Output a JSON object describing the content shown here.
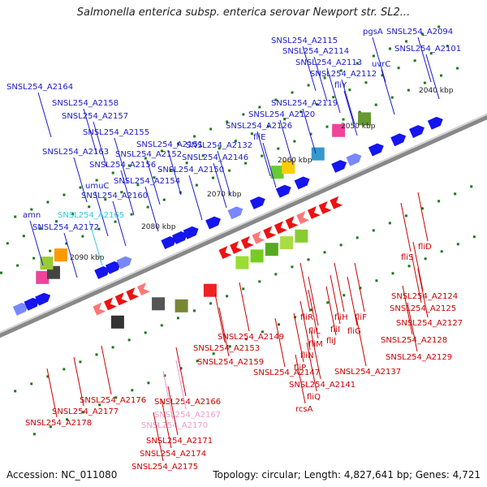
{
  "title": "Salmonella enterica subsp. enterica serovar Newport str. SL2...",
  "footer": {
    "accession": "Accession: NC_011080",
    "summary": "Topology: circular; Length: 4,827,641 bp; Genes: 4,721"
  },
  "colors": {
    "forward_label": "#1a1acc",
    "reverse_label": "#cc0000",
    "pseudo_forward": "#33c8e6",
    "pseudo_reverse": "#ee99cc",
    "backbone": "#888888",
    "tick": "#1a7a1a"
  },
  "ticks": [
    "2040 kbp",
    "2050 kbp",
    "2060 kbp",
    "2070 kbp",
    "2080 kbp",
    "2090 kbp"
  ],
  "top_labels": [
    "SNSL254_A2164",
    "SNSL254_A2158",
    "SNSL254_A2157",
    "SNSL254_A2155",
    "SNSL254_A2151",
    "SNSL254_A2152",
    "SNSL254_A2163",
    "SNSL254_A2156",
    "SNSL254_A2154",
    "SNSL254_A2150",
    "umuC",
    "SNSL254_A2160",
    "amn",
    "SNSL254_A2165",
    "SNSL254_A2172",
    "SNSL254_A2132",
    "SNSL254_A2146",
    "fliE",
    "SNSL254_A2126",
    "SNSL254_A2120",
    "SNSL254_A2119",
    "fliY",
    "SNSL254_A2112",
    "SNSL254_A2113",
    "SNSL254_A2114",
    "SNSL254_A2115",
    "pgsA",
    "uvrC",
    "SNSL254_A2101",
    "SNSL254_A2094"
  ],
  "bottom_labels": [
    "fliD",
    "fliS",
    "SNSL254_A2124",
    "SNSL254_A2125",
    "SNSL254_A2127",
    "SNSL254_A2128",
    "SNSL254_A2129",
    "fliF",
    "fliG",
    "fliH",
    "fliI",
    "fliJ",
    "fliL",
    "fliM",
    "fliN",
    "fliR",
    "fliP",
    "fliQ",
    "rcsA",
    "SNSL254_A2137",
    "SNSL254_A2141",
    "SNSL254_A2147",
    "SNSL254_A2149",
    "SNSL254_A2153",
    "SNSL254_A2159",
    "SNSL254_A2166",
    "SNSL254_A2167",
    "SNSL254_A2170",
    "SNSL254_A2171",
    "SNSL254_A2174",
    "SNSL254_A2175",
    "SNSL254_A2176",
    "SNSL254_A2177",
    "SNSL254_A2178"
  ]
}
